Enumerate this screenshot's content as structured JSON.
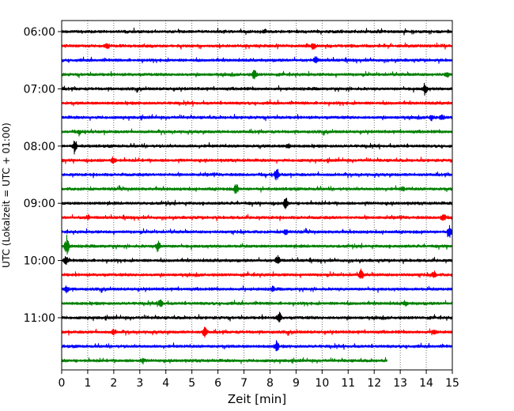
{
  "chart_data": {
    "type": "line",
    "title": "",
    "xlabel": "Zeit  [min]",
    "ylabel": "UTC (Lokalzeit = UTC + 01:00)",
    "xlim": [
      0,
      15
    ],
    "x_ticks": [
      "0",
      "1",
      "2",
      "3",
      "4",
      "5",
      "6",
      "7",
      "8",
      "9",
      "10",
      "11",
      "12",
      "13",
      "14",
      "15"
    ],
    "y_ticks": [
      "06:00",
      "07:00",
      "08:00",
      "09:00",
      "10:00",
      "11:00"
    ],
    "grid_x": true,
    "grid_y": false,
    "trace_interval_min": 15,
    "start_time": "06:00",
    "color_cycle": [
      "#000000",
      "#ff0000",
      "#0000ff",
      "#008000"
    ],
    "series": [
      {
        "label": "06:00",
        "color": "#000000",
        "end_min": 15,
        "events": [
          [
            7.8,
            0.15
          ]
        ]
      },
      {
        "label": "06:15",
        "color": "#ff0000",
        "end_min": 15,
        "events": [
          [
            1.75,
            0.25
          ],
          [
            9.65,
            0.3
          ]
        ]
      },
      {
        "label": "06:30",
        "color": "#0000ff",
        "end_min": 15,
        "events": [
          [
            9.75,
            0.35
          ]
        ]
      },
      {
        "label": "06:45",
        "color": "#008000",
        "end_min": 15,
        "events": [
          [
            7.4,
            0.45
          ],
          [
            14.8,
            0.2
          ]
        ]
      },
      {
        "label": "07:00",
        "color": "#000000",
        "end_min": 15,
        "events": [
          [
            13.95,
            0.55
          ]
        ]
      },
      {
        "label": "07:15",
        "color": "#ff0000",
        "end_min": 15,
        "events": []
      },
      {
        "label": "07:30",
        "color": "#0000ff",
        "end_min": 15,
        "events": [
          [
            14.2,
            0.25
          ],
          [
            14.6,
            0.2
          ]
        ]
      },
      {
        "label": "07:45",
        "color": "#008000",
        "end_min": 15,
        "events": [
          [
            0.7,
            0.15
          ]
        ]
      },
      {
        "label": "08:00",
        "color": "#000000",
        "end_min": 15,
        "events": [
          [
            0.5,
            0.5
          ],
          [
            8.7,
            0.2
          ]
        ]
      },
      {
        "label": "08:15",
        "color": "#ff0000",
        "end_min": 15,
        "events": [
          [
            2.0,
            0.35
          ]
        ]
      },
      {
        "label": "08:30",
        "color": "#0000ff",
        "end_min": 15,
        "events": [
          [
            8.25,
            0.5
          ]
        ]
      },
      {
        "label": "08:45",
        "color": "#008000",
        "end_min": 15,
        "events": [
          [
            6.7,
            0.45
          ],
          [
            13.1,
            0.15
          ]
        ]
      },
      {
        "label": "09:00",
        "color": "#000000",
        "end_min": 15,
        "events": [
          [
            8.6,
            0.5
          ]
        ]
      },
      {
        "label": "09:15",
        "color": "#ff0000",
        "end_min": 15,
        "events": [
          [
            1.0,
            0.2
          ],
          [
            14.65,
            0.4
          ]
        ]
      },
      {
        "label": "09:30",
        "color": "#0000ff",
        "end_min": 15,
        "events": [
          [
            8.6,
            0.25
          ],
          [
            14.9,
            0.5
          ]
        ]
      },
      {
        "label": "09:45",
        "color": "#008000",
        "end_min": 15,
        "events": [
          [
            0.2,
            0.9
          ],
          [
            3.7,
            0.5
          ]
        ]
      },
      {
        "label": "10:00",
        "color": "#000000",
        "end_min": 15,
        "events": [
          [
            0.15,
            0.4
          ],
          [
            8.3,
            0.5
          ]
        ]
      },
      {
        "label": "10:15",
        "color": "#ff0000",
        "end_min": 15,
        "events": [
          [
            11.5,
            0.45
          ],
          [
            14.3,
            0.3
          ]
        ]
      },
      {
        "label": "10:30",
        "color": "#0000ff",
        "end_min": 15,
        "events": [
          [
            0.2,
            0.3
          ],
          [
            8.1,
            0.2
          ]
        ]
      },
      {
        "label": "10:45",
        "color": "#008000",
        "end_min": 15,
        "events": [
          [
            3.8,
            0.45
          ],
          [
            13.2,
            0.15
          ]
        ]
      },
      {
        "label": "11:00",
        "color": "#000000",
        "end_min": 15,
        "events": [
          [
            8.35,
            0.5
          ]
        ]
      },
      {
        "label": "11:15",
        "color": "#ff0000",
        "end_min": 15,
        "events": [
          [
            2.0,
            0.25
          ],
          [
            5.5,
            0.5
          ],
          [
            14.3,
            0.2
          ]
        ]
      },
      {
        "label": "11:30",
        "color": "#0000ff",
        "end_min": 15,
        "events": [
          [
            8.25,
            0.45
          ]
        ]
      },
      {
        "label": "11:45",
        "color": "#008000",
        "end_min": 12.5,
        "events": [
          [
            3.1,
            0.15
          ]
        ]
      }
    ]
  }
}
